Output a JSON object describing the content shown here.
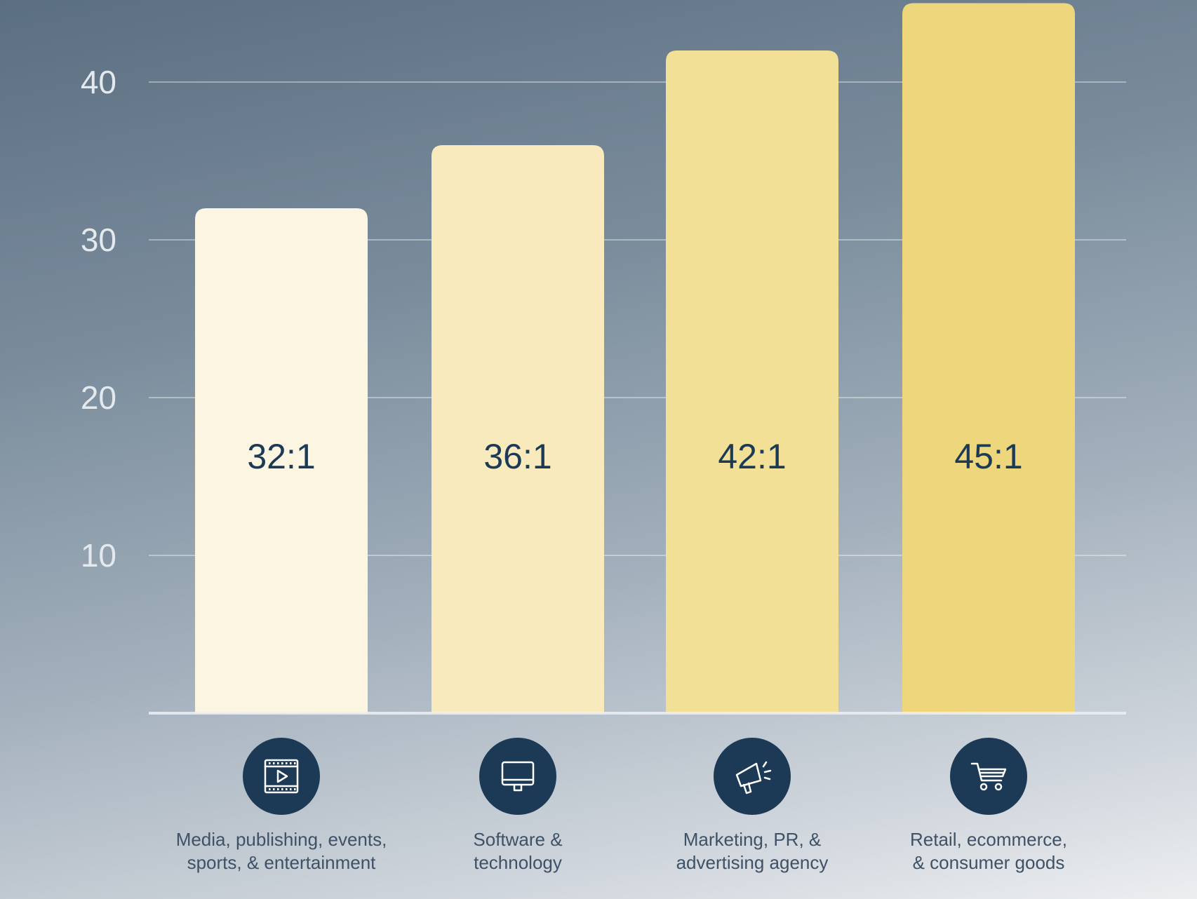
{
  "chart_data": {
    "type": "bar",
    "title": "",
    "xlabel": "",
    "ylabel": "",
    "ylim": [
      0,
      45
    ],
    "yticks": [
      10,
      20,
      30,
      40
    ],
    "grid": true,
    "categories": [
      [
        "Media, publishing, events,",
        "sports, & entertainment"
      ],
      [
        "Software &",
        "technology"
      ],
      [
        "Marketing, PR, &",
        "advertising agency"
      ],
      [
        "Retail, ecommerce,",
        "& consumer goods"
      ]
    ],
    "values": [
      32,
      36,
      42,
      45
    ],
    "data_labels": [
      "32:1",
      "36:1",
      "42:1",
      "45:1"
    ],
    "category_icons": [
      "video-player-icon",
      "monitor-icon",
      "megaphone-icon",
      "shopping-cart-icon"
    ],
    "bar_colors": [
      "#fcf5e2",
      "#f8eabd",
      "#f2e097",
      "#edd67c"
    ],
    "icon_circle_color": "#1c3a55"
  }
}
